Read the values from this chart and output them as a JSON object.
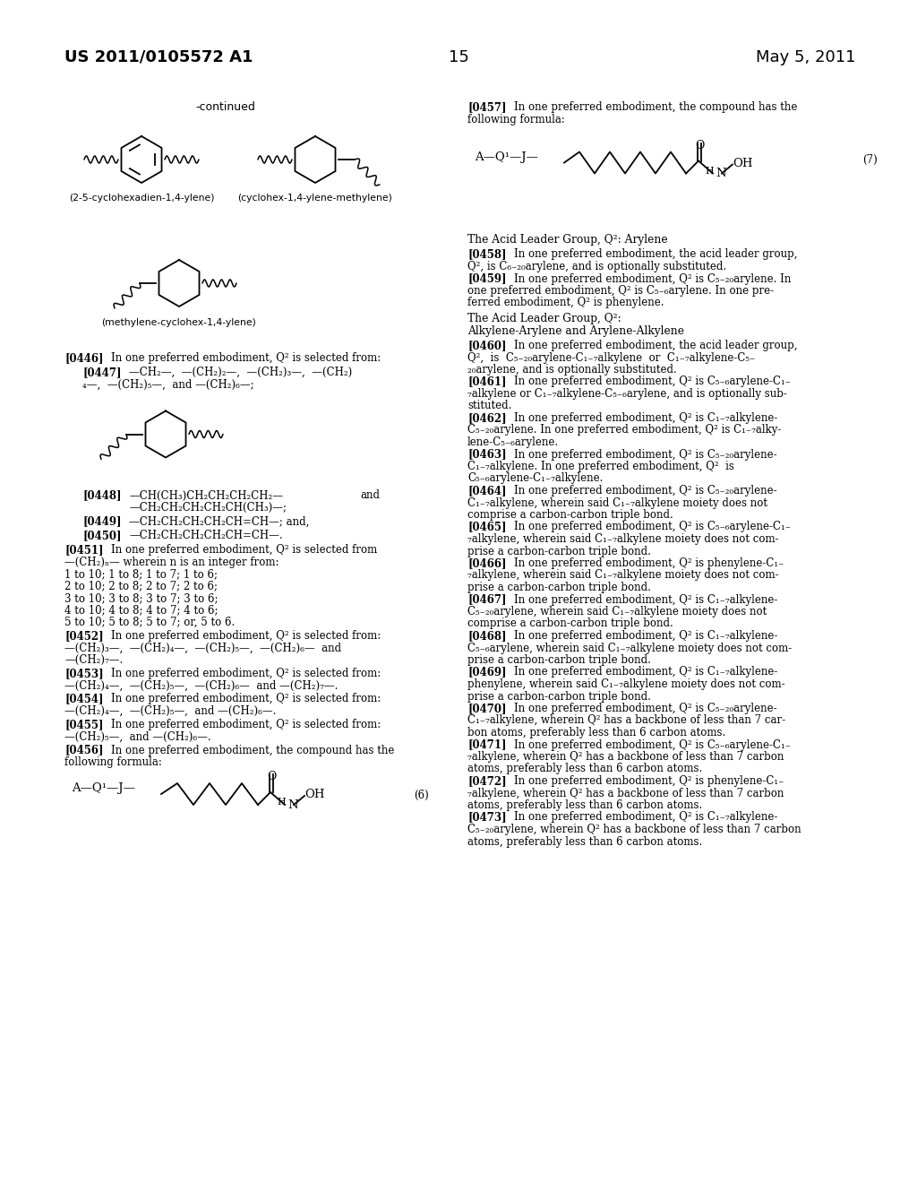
{
  "background_color": "#ffffff",
  "header_left": "US 2011/0105572 A1",
  "header_center": "15",
  "header_right": "May 5, 2011",
  "continued_label": "-continued",
  "label1": "(2-5-cyclohexadien-1,4-ylene)",
  "label2": "(cyclohex-1,4-ylene-methylene)",
  "label3": "(methylene-cyclohex-1,4-ylene)"
}
